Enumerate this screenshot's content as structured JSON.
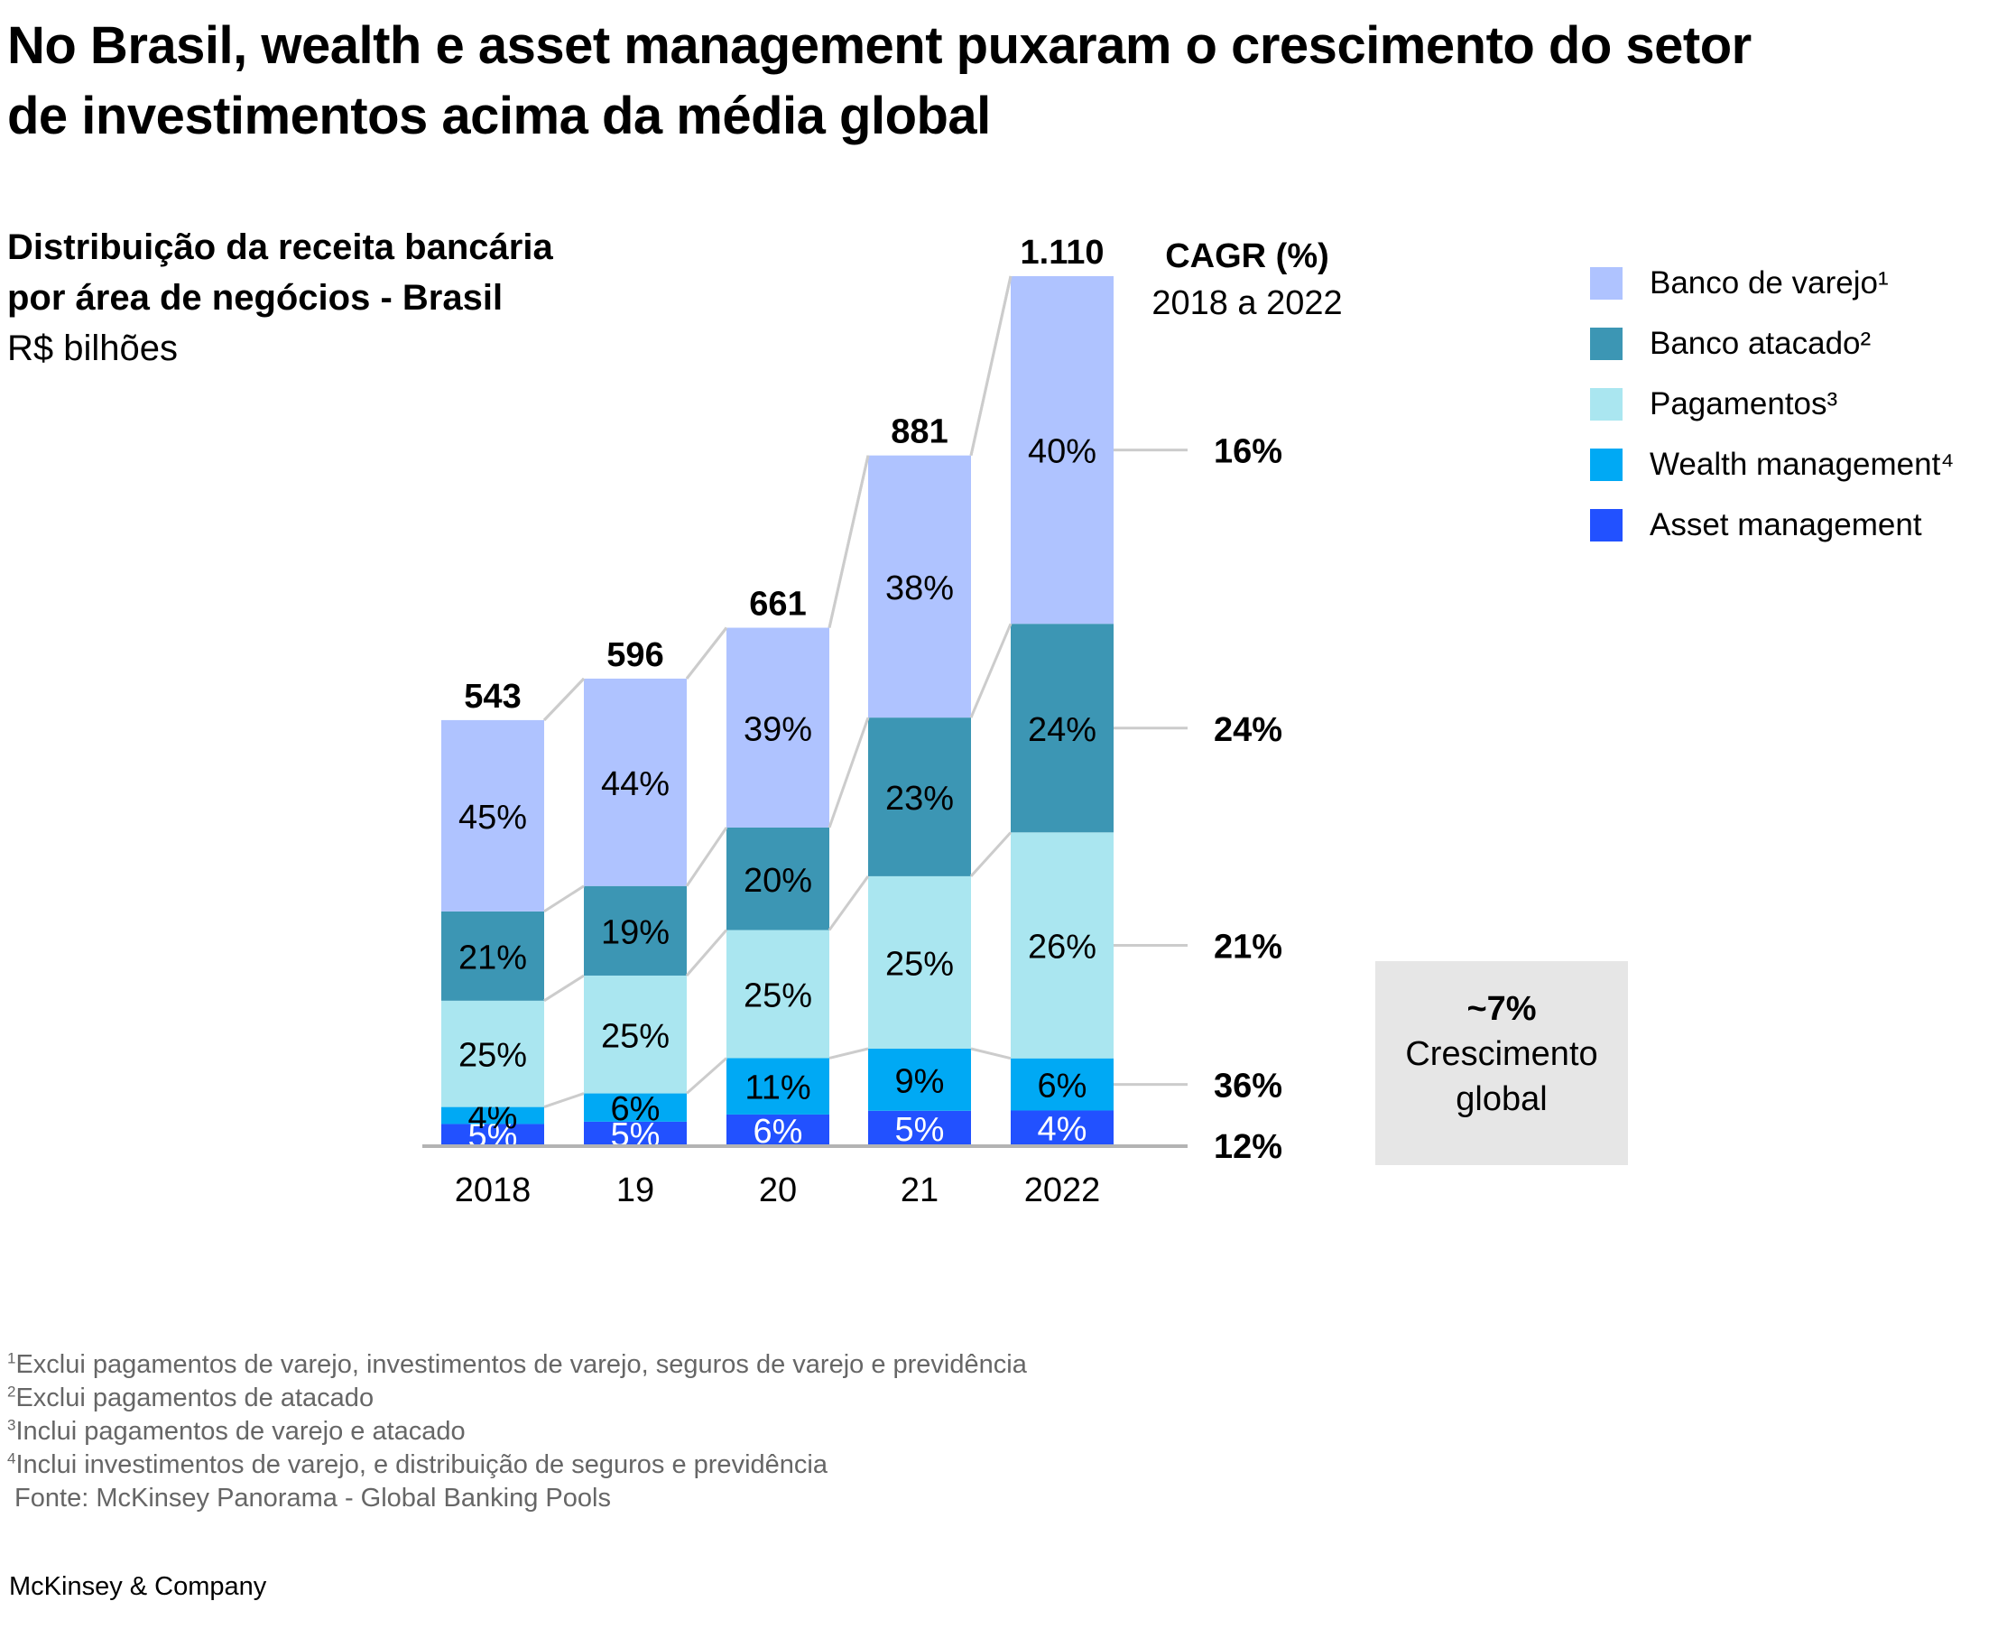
{
  "title_line1": "No Brasil, wealth e asset management puxaram o crescimento do setor",
  "title_line2": "de investimentos acima da média global",
  "subtitle_line1": "Distribuição da receita bancária",
  "subtitle_line2": "por área de negócios - Brasil",
  "unit": "R$ bilhões",
  "cagr_title": "CAGR (%)",
  "cagr_period": "2018 a 2022",
  "global_box": {
    "value": "~7%",
    "line1": "Crescimento",
    "line2": "global"
  },
  "footnotes": [
    {
      "num": "1",
      "text": "Exclui pagamentos de varejo, investimentos de varejo, seguros de varejo e previdência"
    },
    {
      "num": "2",
      "text": "Exclui pagamentos de atacado"
    },
    {
      "num": "3",
      "text": "Inclui pagamentos de varejo e atacado"
    },
    {
      "num": "4",
      "text": "Inclui investimentos de varejo, e distribuição de seguros e previdência"
    }
  ],
  "source": " Fonte: McKinsey Panorama - Global Banking Pools",
  "brand": "McKinsey & Company",
  "chart_data": {
    "type": "bar",
    "stacked": true,
    "title": "Distribuição da receita bancária por área de negócios - Brasil",
    "ylabel": "R$ bilhões",
    "categories": [
      "2018",
      "19",
      "20",
      "21",
      "2022"
    ],
    "totals": [
      543,
      596,
      661,
      881,
      1110
    ],
    "total_labels": [
      "543",
      "596",
      "661",
      "881",
      "1.110"
    ],
    "series": [
      {
        "name": "Asset management",
        "legend": "Asset management",
        "color": "#2251ff",
        "values": [
          5,
          5,
          6,
          5,
          4
        ],
        "cagr": "12%",
        "label_color": "#ffffff"
      },
      {
        "name": "Wealth management",
        "legend": "Wealth management⁴",
        "color": "#00a9f4",
        "values": [
          4,
          6,
          11,
          9,
          6
        ],
        "cagr": "36%",
        "label_color": "#000000"
      },
      {
        "name": "Pagamentos",
        "legend": "Pagamentos³",
        "color": "#aae6f0",
        "values": [
          25,
          25,
          25,
          25,
          26
        ],
        "cagr": "21%",
        "label_color": "#000000"
      },
      {
        "name": "Banco atacado",
        "legend": "Banco atacado²",
        "color": "#3c96b4",
        "values": [
          21,
          19,
          20,
          23,
          24
        ],
        "cagr": "24%",
        "label_color": "#000000"
      },
      {
        "name": "Banco de varejo",
        "legend": "Banco de varejo¹",
        "color": "#afc3ff",
        "values": [
          45,
          44,
          39,
          38,
          40
        ],
        "cagr": "16%",
        "label_color": "#000000"
      }
    ],
    "value_unit": "% of total",
    "legend_position": "top-right",
    "global_growth": "~7%"
  }
}
